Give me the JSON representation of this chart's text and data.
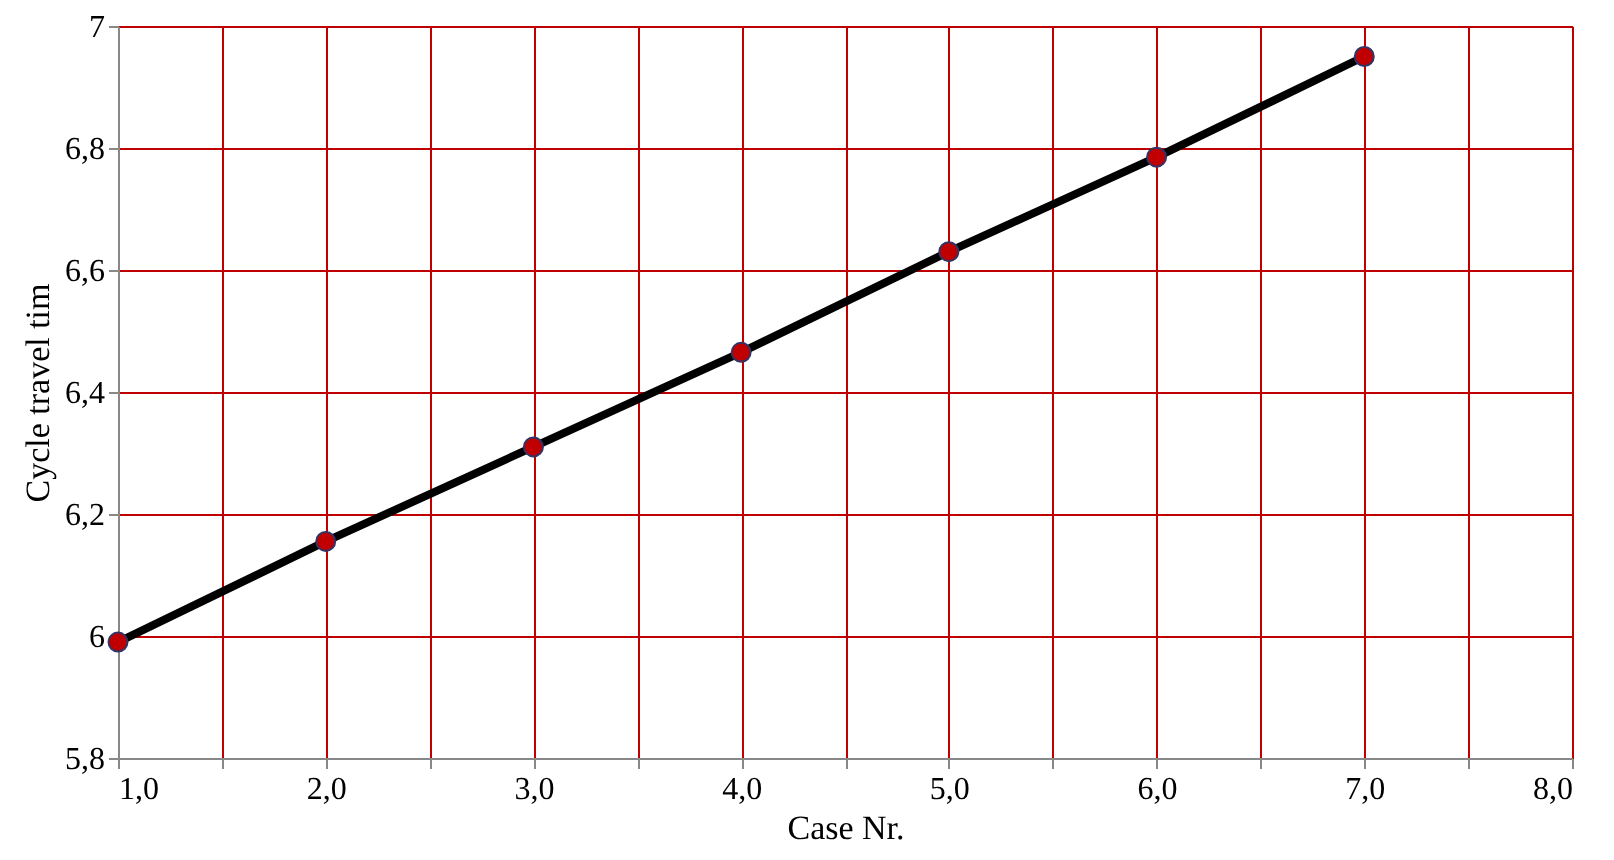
{
  "chart_data": {
    "type": "line",
    "xlabel": "Case Nr.",
    "ylabel": "Cycle travel tim",
    "x": [
      1,
      2,
      3,
      4,
      5,
      6,
      7
    ],
    "series": [
      {
        "color": "#000000",
        "values": [
          5.99,
          6.155,
          6.31,
          6.465,
          6.63,
          6.785,
          6.95
        ]
      }
    ],
    "marker": "circle",
    "line_style": "solid",
    "xlim": [
      1,
      8
    ],
    "ylim": [
      5.8,
      7
    ],
    "xticks": [
      {
        "value": 1,
        "label": "1,0"
      },
      {
        "value": 1.5,
        "label": null
      },
      {
        "value": 2,
        "label": "2,0"
      },
      {
        "value": 2.5,
        "label": null
      },
      {
        "value": 3,
        "label": "3,0"
      },
      {
        "value": 3.5,
        "label": null
      },
      {
        "value": 4,
        "label": "4,0"
      },
      {
        "value": 4.5,
        "label": null
      },
      {
        "value": 5,
        "label": "5,0"
      },
      {
        "value": 5.5,
        "label": null
      },
      {
        "value": 6,
        "label": "6,0"
      },
      {
        "value": 6.5,
        "label": null
      },
      {
        "value": 7,
        "label": "7,0"
      },
      {
        "value": 7.5,
        "label": null
      },
      {
        "value": 8,
        "label": "8,0"
      }
    ],
    "yticks": [
      {
        "value": 5.8,
        "label": "5,8"
      },
      6,
      {
        "value": 6.2,
        "label": "6,2"
      },
      {
        "value": 6.4,
        "label": "6,4"
      },
      {
        "value": 6.6,
        "label": "6,6"
      },
      {
        "value": 6.8,
        "label": "6,8"
      },
      7
    ],
    "grid": true
  }
}
